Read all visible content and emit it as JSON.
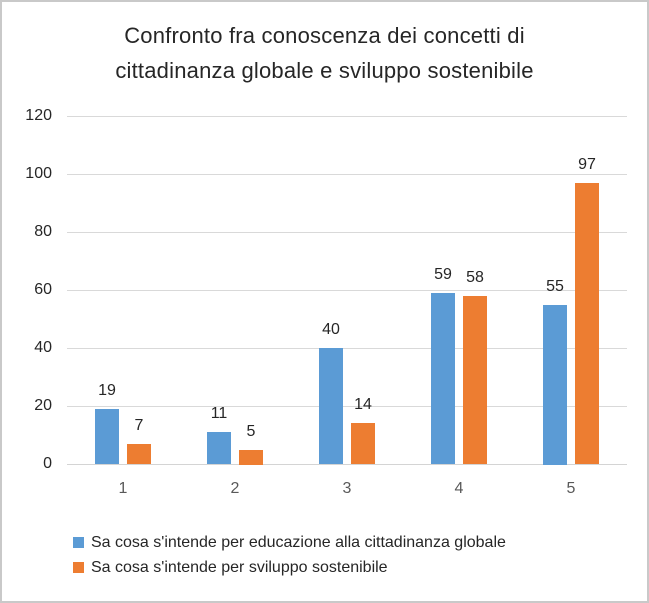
{
  "chart_data": {
    "type": "bar",
    "title": "Confronto fra conoscenza dei concetti di cittadinanza globale e sviluppo sostenibile",
    "title_lines": [
      "Confronto fra conoscenza dei concetti di",
      "cittadinanza globale e sviluppo sostenibile"
    ],
    "categories": [
      "1",
      "2",
      "3",
      "4",
      "5"
    ],
    "series": [
      {
        "name": "Sa cosa s'intende per educazione alla cittadinanza globale",
        "color": "#5B9BD5",
        "values": [
          19,
          11,
          40,
          59,
          55
        ]
      },
      {
        "name": "Sa cosa s'intende per sviluppo sostenibile",
        "color": "#ED7D31",
        "values": [
          7,
          5,
          14,
          58,
          97
        ]
      }
    ],
    "y_ticks": [
      0,
      20,
      40,
      60,
      80,
      100,
      120
    ],
    "ylim": [
      0,
      120
    ],
    "grid": true,
    "data_labels": true,
    "legend_position": "bottom-left"
  },
  "colors": {
    "series_1": "#5B9BD5",
    "series_2": "#ED7D31",
    "gridline": "#D9D9D9",
    "axis_line": "#D4D4D4",
    "title_text": "#262626",
    "y_tick_text": "#262626",
    "x_tick_text": "#595959",
    "value_label_text": "#262626",
    "legend_text": "#262626",
    "frame_border": "#C9C9C9",
    "background": "#FFFFFF"
  }
}
